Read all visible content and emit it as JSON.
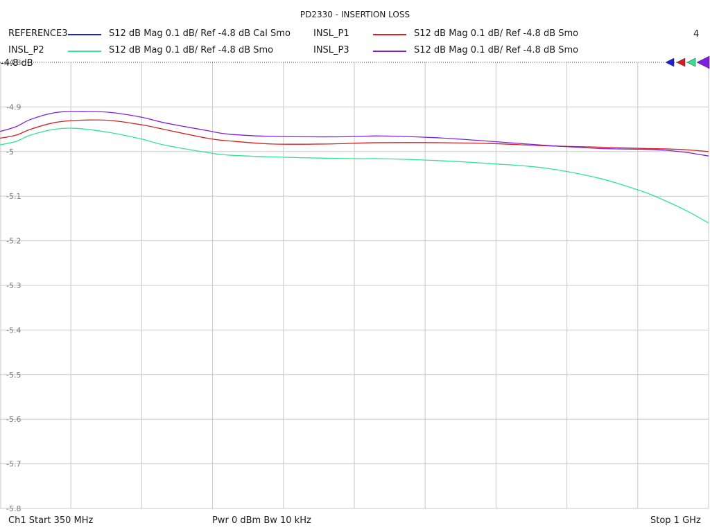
{
  "title": "PD2330 - INSERTION LOSS",
  "channel_number": "4",
  "legend": [
    {
      "name": "REFERENCE3",
      "desc": "S12  dB Mag  0.1 dB/ Ref -4.8 dB  Cal Smo",
      "color": "#1f1fd6"
    },
    {
      "name": "INSL_P1",
      "desc": "S12  dB Mag  0.1 dB/ Ref -4.8 dB  Smo",
      "color": "#d61f1f"
    },
    {
      "name": "INSL_P2",
      "desc": "S12  dB Mag  0.1 dB/ Ref -4.8 dB  Smo",
      "color": "#2ee68f"
    },
    {
      "name": "INSL_P3",
      "desc": "S12  dB Mag  0.1 dB/ Ref -4.8 dB  Smo",
      "color": "#7f1fe0"
    }
  ],
  "ref_label": "-4.8 dB",
  "footer": {
    "start": "Ch1  Start  350 MHz",
    "power": "Pwr  0 dBm  Bw  10 kHz",
    "stop": "Stop  1 GHz"
  },
  "chart_data": {
    "type": "line",
    "title": "PD2330 - INSERTION LOSS",
    "xlim": [
      350,
      1000
    ],
    "ylim": [
      -5.8,
      -4.8
    ],
    "grid": true,
    "y_ticks": [
      -4.8,
      -4.9,
      -5,
      -5.1,
      -5.2,
      -5.3,
      -5.4,
      -5.5,
      -5.6,
      -5.7,
      -5.8
    ],
    "y_tick_labels": [
      "-4.8",
      "-4.9",
      "-5",
      "-5.1",
      "-5.2",
      "-5.3",
      "-5.4",
      "-5.5",
      "-5.6",
      "-5.7",
      "-5.8"
    ],
    "x": [
      350,
      365,
      378,
      400,
      420,
      450,
      480,
      500,
      540,
      560,
      600,
      650,
      680,
      700,
      750,
      800,
      850,
      900,
      940,
      960,
      980,
      1000
    ],
    "series": [
      {
        "name": "INSL_P1",
        "color": "#d61f1f",
        "values": [
          -4.97,
          -4.963,
          -4.95,
          -4.935,
          -4.93,
          -4.93,
          -4.94,
          -4.95,
          -4.97,
          -4.976,
          -4.983,
          -4.983,
          -4.981,
          -4.98,
          -4.98,
          -4.982,
          -4.987,
          -4.99,
          -4.993,
          -4.994,
          -4.996,
          -5.0
        ]
      },
      {
        "name": "INSL_P2",
        "color": "#2ee68f",
        "values": [
          -4.985,
          -4.977,
          -4.963,
          -4.95,
          -4.948,
          -4.957,
          -4.972,
          -4.985,
          -5.002,
          -5.008,
          -5.012,
          -5.015,
          -5.016,
          -5.016,
          -5.02,
          -5.027,
          -5.037,
          -5.06,
          -5.09,
          -5.11,
          -5.133,
          -5.16
        ]
      },
      {
        "name": "INSL_P3",
        "color": "#7f1fe0",
        "values": [
          -4.955,
          -4.944,
          -4.928,
          -4.913,
          -4.91,
          -4.912,
          -4.923,
          -4.935,
          -4.953,
          -4.961,
          -4.966,
          -4.967,
          -4.966,
          -4.965,
          -4.969,
          -4.977,
          -4.986,
          -4.993,
          -4.995,
          -4.997,
          -5.002,
          -5.01
        ]
      }
    ]
  }
}
